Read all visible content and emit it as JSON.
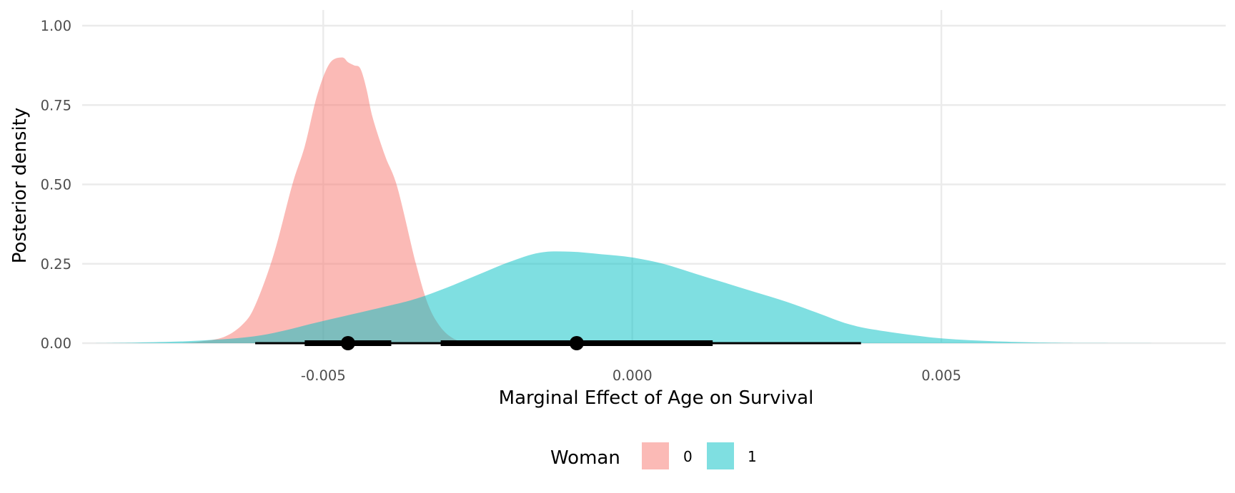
{
  "chart_data": {
    "type": "area",
    "xlabel": "Marginal Effect of Age on Survival",
    "ylabel": "Posterior density",
    "xlim": [
      -0.0089,
      0.0096
    ],
    "ylim": [
      0,
      1
    ],
    "y_ticks": [
      0,
      0.25,
      0.5,
      0.75,
      1
    ],
    "y_tick_labels": [
      "0.00",
      "0.25",
      "0.50",
      "0.75",
      "1.00"
    ],
    "x_ticks": [
      -0.005,
      0,
      0.005
    ],
    "x_tick_labels": [
      "-0.005",
      "0.000",
      "0.005"
    ],
    "grid": true,
    "legend": {
      "title": "Woman",
      "position": "bottom"
    },
    "series": [
      {
        "name": "0",
        "color": "#F8766D",
        "x": [
          -0.0073,
          -0.007,
          -0.0066,
          -0.0063,
          -0.0061,
          -0.0058,
          -0.0055,
          -0.0053,
          -0.0051,
          -0.0049,
          -0.0047,
          -0.0046,
          -0.0045,
          -0.0044,
          -0.0043,
          -0.0042,
          -0.004,
          -0.0038,
          -0.0035,
          -0.0033,
          -0.0031,
          -0.0029,
          -0.0027,
          -0.0025
        ],
        "y": [
          0,
          0.005,
          0.02,
          0.06,
          0.12,
          0.28,
          0.5,
          0.62,
          0.78,
          0.88,
          0.9,
          0.885,
          0.875,
          0.865,
          0.8,
          0.71,
          0.59,
          0.49,
          0.25,
          0.12,
          0.05,
          0.015,
          0.003,
          0
        ],
        "median": -0.0046,
        "interval_66": [
          -0.0053,
          -0.0039
        ],
        "interval_95": [
          -0.0061,
          -0.003
        ]
      },
      {
        "name": "1",
        "color": "#00BFC4",
        "x": [
          -0.0088,
          -0.008,
          -0.007,
          -0.006,
          -0.005,
          -0.004,
          -0.0035,
          -0.003,
          -0.0025,
          -0.002,
          -0.0015,
          -0.001,
          -0.0005,
          0,
          0.0005,
          0.001,
          0.0015,
          0.002,
          0.0025,
          0.003,
          0.0035,
          0.004,
          0.005,
          0.006,
          0.007,
          0.0085
        ],
        "y": [
          0,
          0.002,
          0.008,
          0.025,
          0.07,
          0.115,
          0.14,
          0.175,
          0.215,
          0.255,
          0.285,
          0.288,
          0.28,
          0.27,
          0.25,
          0.22,
          0.19,
          0.16,
          0.13,
          0.095,
          0.06,
          0.04,
          0.015,
          0.005,
          0.001,
          0
        ],
        "median": -0.0009,
        "interval_66": [
          -0.0031,
          0.0013
        ],
        "interval_95": [
          -0.0061,
          0.0037
        ]
      }
    ]
  }
}
